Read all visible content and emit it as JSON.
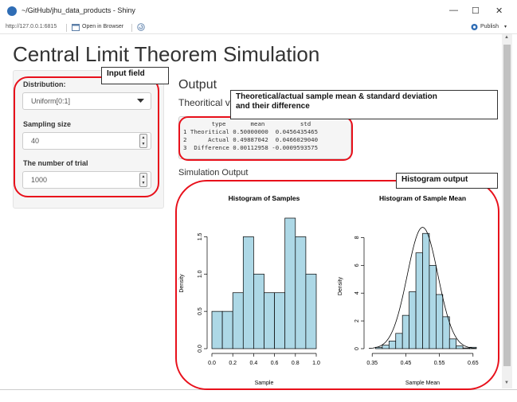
{
  "window": {
    "title": "~/GitHub/jhu_data_products - Shiny",
    "minimize": "—",
    "maximize": "☐",
    "close": "✕"
  },
  "toolbar": {
    "url": "http://127.0.0.1:6815",
    "open_in_browser": "Open in Browser",
    "publish": "Publish",
    "publish_caret": "▾",
    "icons": [
      "browser-icon",
      "refresh-icon",
      "publish-icon"
    ]
  },
  "app": {
    "title": "Central Limit Theorem Simulation",
    "sidebar": {
      "distribution_label": "Distribution:",
      "distribution_value": "Uniform[0:1]",
      "sampling_size_label": "Sampling size",
      "sampling_size_value": "40",
      "trials_label": "The number of trial",
      "trials_value": "1000"
    },
    "output_heading": "Output",
    "theoretical_heading": "Theoritical vs",
    "stats_table": {
      "header": "        type       mean          std",
      "rows": [
        "1 Theoritical 0.50000000  0.0456435465",
        "2      Actual 0.49887042  0.0466029040",
        "3  Difference 0.00112958 -0.0009593575"
      ]
    },
    "simulation_heading": "Simulation Output"
  },
  "annotations": {
    "input_field": "Input field",
    "stats": "Theoretical/actual sample mean & standard deviation and their difference",
    "stats_line1": "Theoretical/actual sample mean & standard deviation",
    "stats_line2": "and their difference",
    "histogram": "Histogram output",
    "color": "#e8101b"
  },
  "chart_data": [
    {
      "type": "bar",
      "title": "Histogram of Samples",
      "xlabel": "Sample",
      "ylabel": "Density",
      "bin_edges": [
        0.0,
        0.1,
        0.2,
        0.3,
        0.4,
        0.5,
        0.6,
        0.7,
        0.8,
        0.9,
        1.0
      ],
      "values": [
        0.5,
        0.5,
        0.75,
        1.5,
        1.0,
        0.75,
        0.75,
        1.75,
        1.5,
        1.0
      ],
      "xticks": [
        "0.0",
        "0.2",
        "0.4",
        "0.6",
        "0.8",
        "1.0"
      ],
      "yticks": [
        "0.0",
        "0.5",
        "1.0",
        "1.5"
      ],
      "xlim": [
        0,
        1
      ],
      "ylim": [
        0,
        1.75
      ],
      "bar_color": "#add8e6"
    },
    {
      "type": "bar",
      "title": "Histogram of Sample Mean",
      "xlabel": "Sample Mean",
      "ylabel": "Density",
      "bin_edges": [
        0.34,
        0.36,
        0.38,
        0.4,
        0.42,
        0.44,
        0.46,
        0.48,
        0.5,
        0.52,
        0.54,
        0.56,
        0.58,
        0.6,
        0.62,
        0.64,
        0.66
      ],
      "values": [
        0.0,
        0.1,
        0.25,
        0.55,
        1.1,
        2.4,
        4.1,
        6.9,
        8.3,
        6.0,
        3.9,
        2.3,
        0.7,
        0.2,
        0.05,
        0.1
      ],
      "xticks": [
        "0.35",
        "0.45",
        "0.55",
        "0.65"
      ],
      "yticks": [
        "0",
        "2",
        "4",
        "6",
        "8"
      ],
      "xlim": [
        0.34,
        0.66
      ],
      "ylim": [
        0,
        9
      ],
      "overlay": "normal density curve",
      "curve": {
        "mean": 0.5,
        "sd": 0.0456435465
      },
      "bar_color": "#add8e6"
    }
  ]
}
